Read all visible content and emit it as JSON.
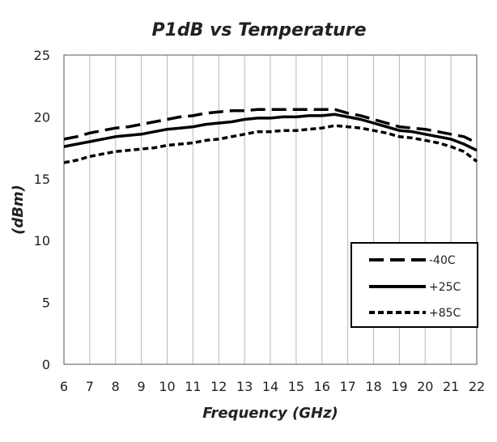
{
  "chart_data": {
    "type": "line",
    "title": "P1dB vs Temperature",
    "xlabel": "Frequency (GHz)",
    "ylabel": "(dBm)",
    "xlim": [
      6,
      22
    ],
    "ylim": [
      0,
      25
    ],
    "x_ticks": [
      6,
      7,
      8,
      9,
      10,
      11,
      12,
      13,
      14,
      15,
      16,
      17,
      18,
      19,
      20,
      21,
      22
    ],
    "y_ticks": [
      0,
      5,
      10,
      15,
      20,
      25
    ],
    "grid": "vertical",
    "legend_position": "right",
    "x": [
      6,
      6.5,
      7,
      7.5,
      8,
      8.5,
      9,
      9.5,
      10,
      10.5,
      11,
      11.5,
      12,
      12.5,
      13,
      13.5,
      14,
      14.5,
      15,
      15.5,
      16,
      16.5,
      17,
      17.5,
      18,
      18.5,
      19,
      19.5,
      20,
      20.5,
      21,
      21.5,
      22
    ],
    "series": [
      {
        "name": "-40C",
        "style": "long-dash",
        "color": "#000000",
        "values": [
          18.2,
          18.4,
          18.7,
          18.9,
          19.1,
          19.2,
          19.4,
          19.6,
          19.8,
          20.0,
          20.1,
          20.3,
          20.4,
          20.5,
          20.5,
          20.6,
          20.6,
          20.6,
          20.6,
          20.6,
          20.6,
          20.6,
          20.3,
          20.1,
          19.8,
          19.5,
          19.2,
          19.1,
          19.0,
          18.8,
          18.6,
          18.4,
          17.9
        ]
      },
      {
        "name": "+25C",
        "style": "solid",
        "color": "#000000",
        "values": [
          17.6,
          17.8,
          18.0,
          18.2,
          18.4,
          18.5,
          18.6,
          18.8,
          19.0,
          19.1,
          19.2,
          19.4,
          19.5,
          19.6,
          19.8,
          19.9,
          19.9,
          20.0,
          20.0,
          20.1,
          20.1,
          20.2,
          20.0,
          19.8,
          19.5,
          19.2,
          18.9,
          18.8,
          18.6,
          18.4,
          18.2,
          17.8,
          17.3
        ]
      },
      {
        "name": "+85C",
        "style": "short-dash",
        "color": "#000000",
        "values": [
          16.3,
          16.5,
          16.8,
          17.0,
          17.2,
          17.3,
          17.4,
          17.5,
          17.7,
          17.8,
          17.9,
          18.1,
          18.2,
          18.4,
          18.6,
          18.8,
          18.8,
          18.9,
          18.9,
          19.0,
          19.1,
          19.3,
          19.2,
          19.1,
          18.9,
          18.7,
          18.4,
          18.3,
          18.1,
          17.9,
          17.6,
          17.2,
          16.4
        ]
      }
    ]
  }
}
